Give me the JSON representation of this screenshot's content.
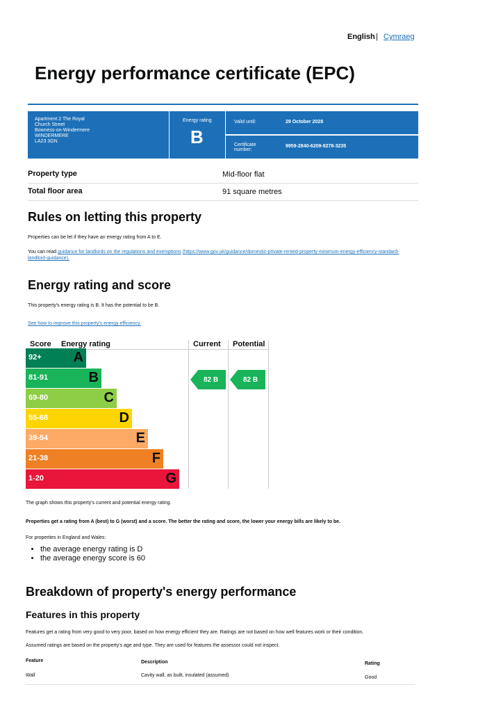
{
  "language": {
    "english": "English",
    "separator": "|",
    "welsh": "Cymraeg"
  },
  "title": "Energy performance certificate (EPC)",
  "summary": {
    "address": [
      "Apartment 2 The Royal",
      "Church Street",
      "Bowness-on-Windermere",
      "WINDERMERE",
      "LA23 3GN"
    ],
    "rating_label": "Energy rating",
    "rating": "B",
    "valid_label": "Valid until:",
    "valid": "29 October 2028",
    "cert_label": "Certificate number:",
    "cert": "9959-2840-6209-9278-3235"
  },
  "property": [
    [
      "Property type",
      "Mid-floor flat"
    ],
    [
      "Total floor area",
      "91 square metres"
    ]
  ],
  "letting": {
    "heading": "Rules on letting this property",
    "p1": "Properties can be let if they have an energy rating from A to E.",
    "p2_pre": "You can read",
    "p2_link": "guidance for landlords on the regulations and exemptions",
    "p2_url": "(https://www.gov.uk/guidance/domestic-private-rented-property-minimum-energy-efficiency-standard-landlord-guidance)."
  },
  "rating": {
    "heading": "Energy rating and score",
    "p1": "This property's energy rating is B. It has the potential to be B.",
    "link": "See how to improve this property's energy efficiency.",
    "headers": [
      "Score",
      "Energy rating",
      "Current",
      "Potential"
    ],
    "bands": [
      {
        "score": "92+",
        "letter": "A"
      },
      {
        "score": "81-91",
        "letter": "B"
      },
      {
        "score": "69-80",
        "letter": "C"
      },
      {
        "score": "55-68",
        "letter": "D"
      },
      {
        "score": "39-54",
        "letter": "E"
      },
      {
        "score": "21-38",
        "letter": "F"
      },
      {
        "score": "1-20",
        "letter": "G"
      }
    ],
    "current": "82 B",
    "potential": "82 B",
    "notes": [
      "The graph shows this property's current and potential energy rating.",
      "Properties get a rating from A (best) to G (worst) and a score. The better the rating and score, the lower your energy bills are likely to be.",
      "For properties in England and Wales:"
    ],
    "list": [
      "the average energy rating is D",
      "the average energy score is 60"
    ]
  },
  "breakdown": {
    "heading": "Breakdown of property's energy performance",
    "subheading": "Features in this property",
    "p1": "Features get a rating from very good to very poor, based on how energy efficient they are. Ratings are not based on how well features work or their condition.",
    "p2": "Assumed ratings are based on the property's age and type. They are used for features the assessor could not inspect.",
    "headers": [
      "Feature",
      "Description",
      "Rating"
    ],
    "rows": [
      [
        "Wall",
        "Cavity wall, as built, insulated (assumed)",
        "Good"
      ]
    ]
  }
}
